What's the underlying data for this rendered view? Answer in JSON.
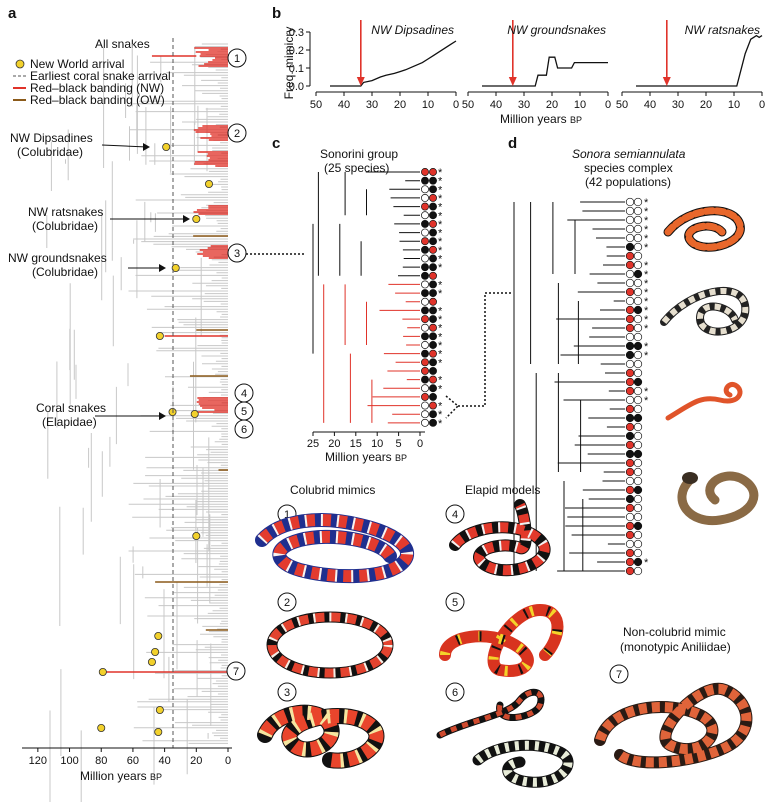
{
  "panel_a": {
    "letter": "a",
    "title": "All snakes",
    "legend": [
      {
        "text": "New World arrival",
        "kind": "dot"
      },
      {
        "text": "Earliest coral snake arrival",
        "kind": "dash"
      },
      {
        "text": "Red–black banding (NW)",
        "kind": "red"
      },
      {
        "text": "Red–black banding (OW)",
        "kind": "brown"
      }
    ],
    "clades": [
      {
        "name": "NW Dipsadines",
        "family": "(Colubridae)"
      },
      {
        "name": "NW ratsnakes",
        "family": "(Colubridae)"
      },
      {
        "name": "NW groundsnakes",
        "family": "(Colubridae)"
      },
      {
        "name": "Coral snakes",
        "family": "(Elapidae)"
      }
    ],
    "x_axis": {
      "label": "Million years ",
      "label_sub": "BP",
      "ticks": [
        "120",
        "100",
        "80",
        "60",
        "40",
        "20",
        "0"
      ]
    },
    "callouts": [
      "1",
      "2",
      "3",
      "4",
      "5",
      "6",
      "7"
    ]
  },
  "panel_b": {
    "letter": "b",
    "ylabel": "Freq. mimicry",
    "yticks": [
      "0.3",
      "0.2",
      "0.1",
      "0.0"
    ],
    "xlabel": "Million years ",
    "xlabel_sub": "BP",
    "xticks": [
      "50",
      "40",
      "30",
      "20",
      "10",
      "0"
    ],
    "charts": [
      {
        "title": "NW Dipsadines",
        "arrival_mya": 34,
        "x": [
          45,
          34,
          33,
          30,
          27,
          25,
          22,
          20,
          18,
          15,
          12,
          10,
          8,
          6,
          4,
          2,
          0
        ],
        "y": [
          0,
          0,
          0.02,
          0.03,
          0.05,
          0.06,
          0.07,
          0.08,
          0.09,
          0.11,
          0.13,
          0.15,
          0.17,
          0.19,
          0.21,
          0.23,
          0.25
        ]
      },
      {
        "title": "NW groundsnakes",
        "arrival_mya": 34,
        "x": [
          45,
          34,
          33,
          26,
          25,
          22,
          21,
          19,
          18,
          13,
          12,
          0
        ],
        "y": [
          0,
          0,
          0,
          0,
          0.06,
          0.06,
          0.16,
          0.16,
          0.1,
          0.1,
          0.13,
          0.13
        ]
      },
      {
        "title": "NW ratsnakes",
        "arrival_mya": 34,
        "x": [
          45,
          34,
          9,
          8,
          7,
          6,
          5,
          4,
          3,
          2,
          1,
          0
        ],
        "y": [
          0,
          0,
          0,
          0.06,
          0.12,
          0.18,
          0.22,
          0.26,
          0.27,
          0.28,
          0.27,
          0.28
        ]
      }
    ]
  },
  "panel_c": {
    "letter": "c",
    "title": "Sonorini group",
    "subtitle": "(25 species)",
    "xlabel": "Million years ",
    "xlabel_sub": "BP",
    "xticks": [
      "25",
      "20",
      "15",
      "10",
      "5",
      "0"
    ]
  },
  "panel_d": {
    "letter": "d",
    "title": "Sonora semiannulata",
    "subtitle1": "species complex",
    "subtitle2": "(42 populations)"
  },
  "photos": {
    "colubrid_title": "Colubrid mimics",
    "elapid_title": "Elapid models",
    "noncolubrid_title": "Non-colubrid mimic",
    "noncolubrid_sub": "(monotypic Aniliidae)",
    "badges": [
      "1",
      "2",
      "3",
      "4",
      "5",
      "6",
      "7"
    ]
  },
  "colors": {
    "red": "#e0332a",
    "brown": "#8b5a1a",
    "gray": "#c8c8c8",
    "yellow": "#f2d12c",
    "dark": "#111111"
  }
}
